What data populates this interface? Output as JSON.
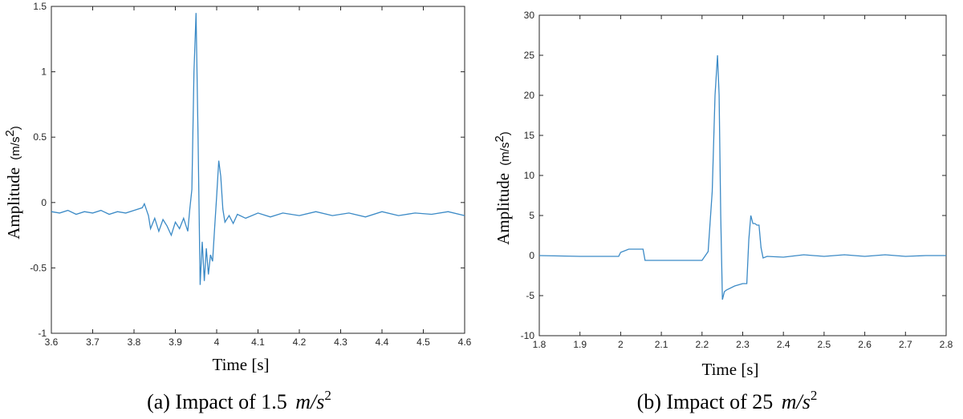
{
  "chart_data": [
    {
      "type": "line",
      "id": "a",
      "caption_prefix": "(a) Impact of 1.5",
      "caption_unit": "m/s",
      "caption_exp": "2",
      "xlabel": "Time [s]",
      "ylabel": "Amplitude",
      "ylabel_unit": "(m/s",
      "ylabel_exp": "2",
      "ylabel_close": ")",
      "xlim": [
        3.6,
        4.6
      ],
      "ylim": [
        -1,
        1.5
      ],
      "xticks": [
        3.6,
        3.7,
        3.8,
        3.9,
        4.0,
        4.1,
        4.2,
        4.3,
        4.4,
        4.5,
        4.6
      ],
      "xtick_labels": [
        "3.6",
        "3.7",
        "3.8",
        "3.9",
        "4",
        "4.1",
        "4.2",
        "4.3",
        "4.4",
        "4.5",
        "4.6"
      ],
      "yticks": [
        -1,
        -0.5,
        0,
        0.5,
        1,
        1.5
      ],
      "ytick_labels": [
        "-1",
        "-0.5",
        "0",
        "0.5",
        "1",
        "1.5"
      ],
      "line_color": "#3b8ac6",
      "grid": false,
      "x": [
        3.6,
        3.62,
        3.64,
        3.66,
        3.68,
        3.7,
        3.72,
        3.74,
        3.76,
        3.78,
        3.8,
        3.82,
        3.825,
        3.835,
        3.84,
        3.85,
        3.86,
        3.87,
        3.88,
        3.89,
        3.9,
        3.91,
        3.92,
        3.93,
        3.935,
        3.94,
        3.945,
        3.95,
        3.955,
        3.96,
        3.965,
        3.97,
        3.975,
        3.98,
        3.985,
        3.99,
        3.995,
        4.0,
        4.005,
        4.01,
        4.015,
        4.02,
        4.03,
        4.04,
        4.05,
        4.07,
        4.1,
        4.13,
        4.16,
        4.2,
        4.24,
        4.28,
        4.32,
        4.36,
        4.4,
        4.44,
        4.48,
        4.52,
        4.56,
        4.6
      ],
      "y": [
        -0.07,
        -0.08,
        -0.06,
        -0.09,
        -0.07,
        -0.08,
        -0.06,
        -0.09,
        -0.07,
        -0.08,
        -0.06,
        -0.04,
        -0.01,
        -0.1,
        -0.2,
        -0.12,
        -0.22,
        -0.13,
        -0.18,
        -0.25,
        -0.15,
        -0.2,
        -0.12,
        -0.22,
        -0.05,
        0.1,
        1.0,
        1.45,
        0.5,
        -0.63,
        -0.3,
        -0.6,
        -0.35,
        -0.55,
        -0.4,
        -0.45,
        -0.2,
        0.05,
        0.32,
        0.2,
        -0.05,
        -0.15,
        -0.1,
        -0.16,
        -0.09,
        -0.12,
        -0.08,
        -0.11,
        -0.08,
        -0.1,
        -0.07,
        -0.1,
        -0.08,
        -0.11,
        -0.07,
        -0.1,
        -0.08,
        -0.09,
        -0.07,
        -0.1
      ]
    },
    {
      "type": "line",
      "id": "b",
      "caption_prefix": "(b) Impact of 25",
      "caption_unit": "m/s",
      "caption_exp": "2",
      "xlabel": "Time [s]",
      "ylabel": "Amplitude",
      "ylabel_unit": "(m/s",
      "ylabel_exp": "2",
      "ylabel_close": ")",
      "xlim": [
        1.8,
        2.8
      ],
      "ylim": [
        -10,
        30
      ],
      "xticks": [
        1.8,
        1.9,
        2.0,
        2.1,
        2.2,
        2.3,
        2.4,
        2.5,
        2.6,
        2.7,
        2.8
      ],
      "xtick_labels": [
        "1.8",
        "1.9",
        "2",
        "2.1",
        "2.2",
        "2.3",
        "2.4",
        "2.5",
        "2.6",
        "2.7",
        "2.8"
      ],
      "yticks": [
        -10,
        -5,
        0,
        5,
        10,
        15,
        20,
        25,
        30
      ],
      "ytick_labels": [
        "-10",
        "-5",
        "0",
        "5",
        "10",
        "15",
        "20",
        "25",
        "30"
      ],
      "line_color": "#3b8ac6",
      "grid": false,
      "x": [
        1.8,
        1.9,
        1.995,
        2.0,
        2.02,
        2.04,
        2.055,
        2.06,
        2.08,
        2.12,
        2.16,
        2.2,
        2.215,
        2.225,
        2.232,
        2.238,
        2.242,
        2.246,
        2.25,
        2.255,
        2.26,
        2.28,
        2.3,
        2.31,
        2.315,
        2.32,
        2.325,
        2.33,
        2.335,
        2.34,
        2.345,
        2.35,
        2.36,
        2.4,
        2.45,
        2.5,
        2.55,
        2.6,
        2.65,
        2.7,
        2.75,
        2.8
      ],
      "y": [
        0,
        -0.1,
        -0.1,
        0.4,
        0.8,
        0.8,
        0.8,
        -0.6,
        -0.6,
        -0.6,
        -0.6,
        -0.6,
        0.5,
        8,
        20,
        25,
        20,
        5,
        -5.5,
        -4.5,
        -4.3,
        -3.8,
        -3.5,
        -3.5,
        2,
        5,
        4,
        4,
        3.8,
        3.8,
        1,
        -0.3,
        -0.1,
        -0.2,
        0.1,
        -0.1,
        0.1,
        -0.1,
        0.1,
        -0.1,
        0,
        0
      ]
    }
  ]
}
